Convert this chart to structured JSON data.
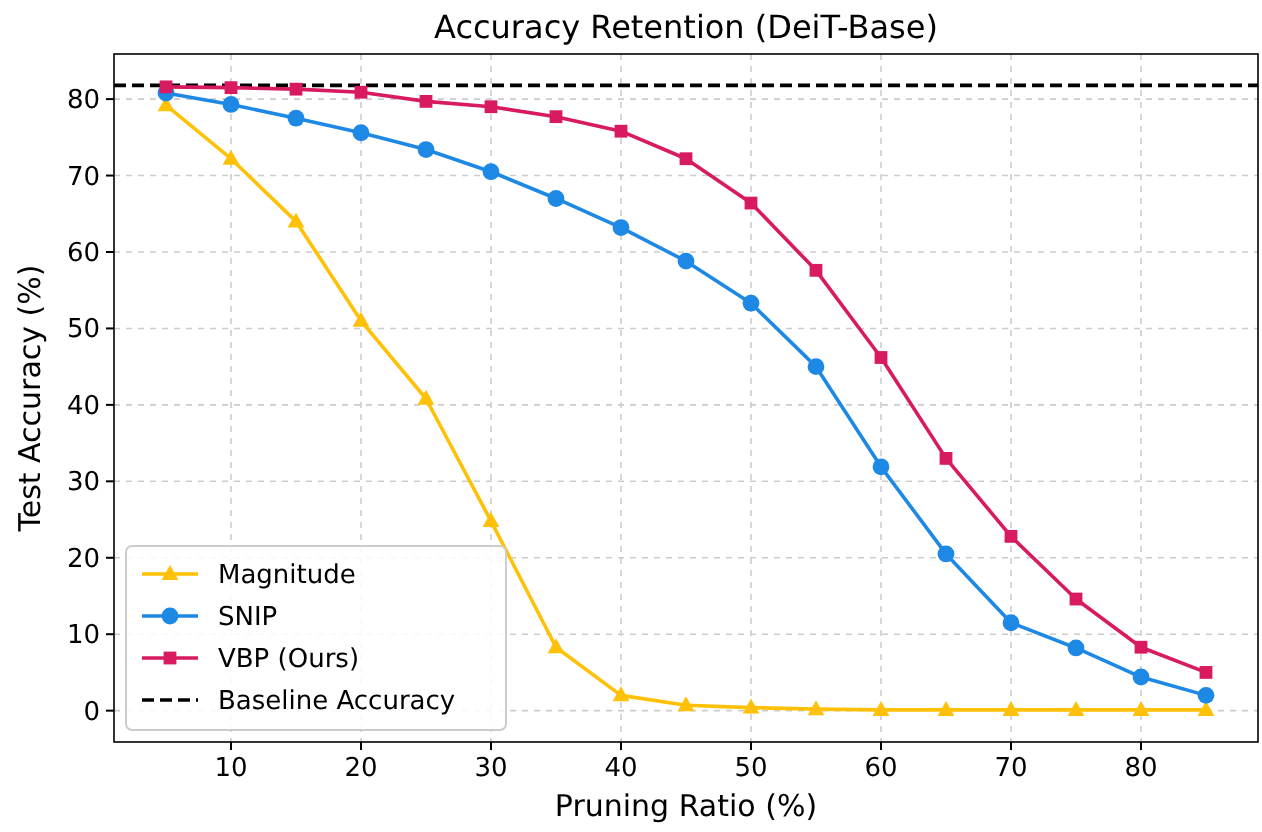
{
  "chart_data": {
    "type": "line",
    "title": "Accuracy Retention (DeiT-Base)",
    "xlabel": "Pruning Ratio (%)",
    "ylabel": "Test Accuracy (%)",
    "x": [
      5,
      10,
      15,
      20,
      25,
      30,
      35,
      40,
      45,
      50,
      55,
      60,
      65,
      70,
      75,
      80,
      85
    ],
    "series": [
      {
        "name": "Magnitude",
        "color": "#ffc107",
        "marker": "triangle",
        "values": [
          79.2,
          72.2,
          64,
          51,
          40.8,
          24.8,
          8.3,
          2,
          0.7,
          0.4,
          0.2,
          0.1,
          0.1,
          0.1,
          0.1,
          0.1,
          0.1
        ]
      },
      {
        "name": "SNIP",
        "color": "#1e88e5",
        "marker": "circle",
        "values": [
          80.8,
          79.3,
          77.5,
          75.6,
          73.4,
          70.5,
          67,
          63.2,
          58.8,
          53.3,
          45,
          31.9,
          20.5,
          11.5,
          8.2,
          4.4,
          2
        ]
      },
      {
        "name": "VBP (Ours)",
        "color": "#d81b60",
        "marker": "square",
        "values": [
          81.6,
          81.5,
          81.3,
          80.9,
          79.7,
          79,
          77.7,
          75.8,
          72.2,
          66.4,
          57.6,
          46.2,
          33,
          22.8,
          14.6,
          8.3,
          5
        ]
      }
    ],
    "ref_lines": [
      {
        "axis": "y",
        "value": 81.8,
        "label": "Baseline Accuracy",
        "color": "#000000",
        "line_style": "dashed"
      }
    ],
    "xlim": [
      1,
      89
    ],
    "xticks": [
      10,
      20,
      30,
      40,
      50,
      60,
      70,
      80
    ],
    "ylim": [
      -4.1,
      85.9
    ],
    "yticks": [
      0,
      10,
      20,
      30,
      40,
      50,
      60,
      70,
      80
    ],
    "grid": true,
    "legend": "bottom left",
    "line_style": "solid"
  }
}
